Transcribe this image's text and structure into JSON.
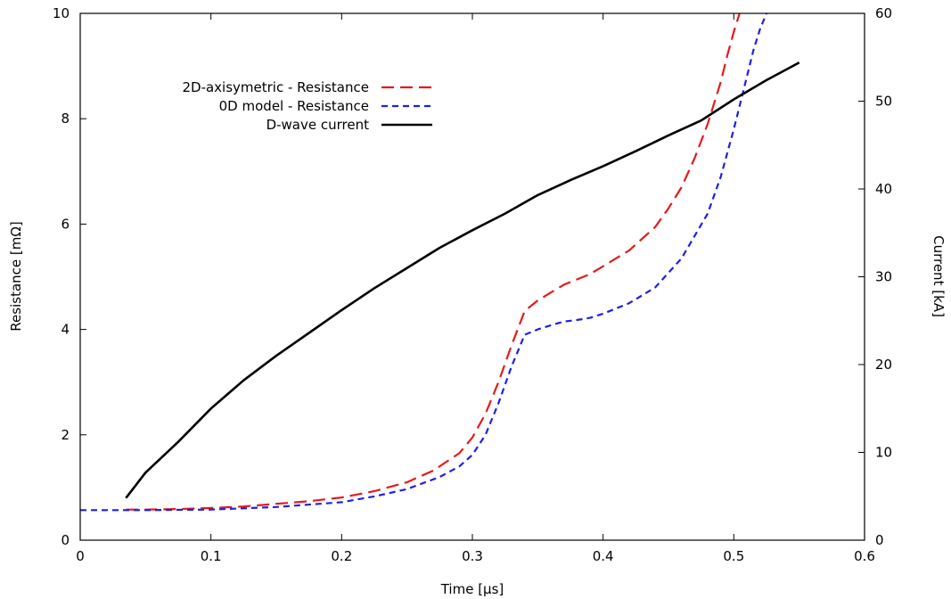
{
  "chart_data": {
    "type": "line",
    "xlabel": "Time [μs]",
    "ylabel": "Resistance [mΩ]",
    "y2label": "Current [kA]",
    "xlim": [
      0,
      0.6
    ],
    "ylim": [
      0,
      10
    ],
    "y2lim": [
      0,
      60
    ],
    "grid": false,
    "legend_position": "top-left",
    "x_ticks": [
      "0",
      "0.1",
      "0.2",
      "0.3",
      "0.4",
      "0.5",
      "0.6"
    ],
    "y_ticks": [
      "0",
      "2",
      "4",
      "6",
      "8",
      "10"
    ],
    "y2_ticks": [
      "0",
      "10",
      "20",
      "30",
      "40",
      "50",
      "60"
    ],
    "series": [
      {
        "name": "2D-axisymetric - Resistance",
        "axis": "left",
        "color": "#e41a1c",
        "dash": "dashed",
        "x": [
          0.035,
          0.05,
          0.075,
          0.1,
          0.125,
          0.15,
          0.175,
          0.2,
          0.225,
          0.25,
          0.27,
          0.29,
          0.3,
          0.31,
          0.32,
          0.33,
          0.34,
          0.35,
          0.36,
          0.37,
          0.38,
          0.39,
          0.4,
          0.42,
          0.44,
          0.45,
          0.46,
          0.47,
          0.48,
          0.49,
          0.495,
          0.5,
          0.505,
          0.508
        ],
        "y": [
          0.58,
          0.58,
          0.59,
          0.61,
          0.64,
          0.69,
          0.74,
          0.81,
          0.93,
          1.1,
          1.32,
          1.65,
          1.95,
          2.4,
          3.0,
          3.7,
          4.35,
          4.55,
          4.7,
          4.85,
          4.95,
          5.05,
          5.2,
          5.5,
          5.95,
          6.3,
          6.7,
          7.25,
          7.9,
          8.7,
          9.2,
          9.65,
          10.05,
          10.2
        ]
      },
      {
        "name": "0D model - Resistance",
        "axis": "left",
        "color": "#1f1fe6",
        "dash": "short-dashed",
        "x": [
          0.0,
          0.05,
          0.1,
          0.15,
          0.2,
          0.225,
          0.25,
          0.275,
          0.29,
          0.3,
          0.31,
          0.32,
          0.33,
          0.34,
          0.35,
          0.36,
          0.37,
          0.38,
          0.39,
          0.4,
          0.42,
          0.44,
          0.46,
          0.48,
          0.49,
          0.5,
          0.51,
          0.515,
          0.52,
          0.525,
          0.528
        ],
        "y": [
          0.57,
          0.57,
          0.58,
          0.63,
          0.72,
          0.83,
          0.97,
          1.2,
          1.4,
          1.62,
          2.0,
          2.6,
          3.3,
          3.9,
          4.0,
          4.08,
          4.15,
          4.18,
          4.22,
          4.3,
          4.5,
          4.8,
          5.35,
          6.2,
          6.9,
          7.8,
          8.8,
          9.3,
          9.7,
          10.0,
          10.2
        ]
      },
      {
        "name": "D-wave current",
        "axis": "right",
        "color": "#000000",
        "dash": "solid",
        "x": [
          0.035,
          0.05,
          0.075,
          0.1,
          0.125,
          0.15,
          0.175,
          0.2,
          0.225,
          0.25,
          0.275,
          0.3,
          0.325,
          0.35,
          0.375,
          0.4,
          0.425,
          0.45,
          0.475,
          0.5,
          0.525,
          0.55
        ],
        "y": [
          4.8,
          7.7,
          11.2,
          15.0,
          18.2,
          21.0,
          23.6,
          26.2,
          28.7,
          31.0,
          33.3,
          35.3,
          37.2,
          39.3,
          41.0,
          42.6,
          44.3,
          46.1,
          47.8,
          50.2,
          52.4,
          54.4
        ]
      }
    ]
  }
}
